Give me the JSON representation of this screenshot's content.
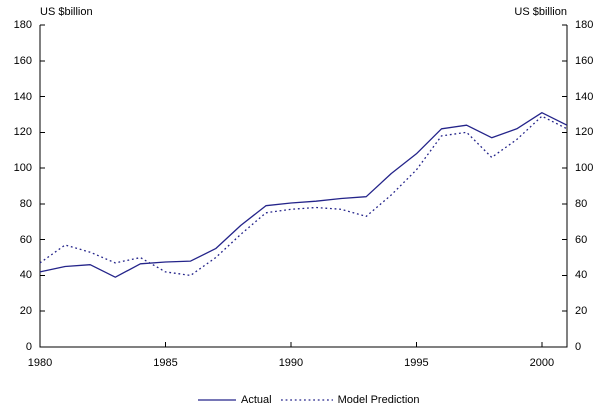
{
  "chart_data": {
    "type": "line",
    "title": "",
    "ylabel_left": "US $billion",
    "ylabel_right": "US $billion",
    "xlim": [
      1980,
      2001
    ],
    "ylim": [
      0,
      180
    ],
    "yticks": [
      0,
      20,
      40,
      60,
      80,
      100,
      120,
      140,
      160,
      180
    ],
    "xticks": [
      1980,
      1985,
      1990,
      1995,
      2000
    ],
    "grid": false,
    "legend_position": "bottom-center",
    "line_color": "#24248a",
    "axis_color": "#000000",
    "x": [
      1980,
      1981,
      1982,
      1983,
      1984,
      1985,
      1986,
      1987,
      1988,
      1989,
      1990,
      1991,
      1992,
      1993,
      1994,
      1995,
      1996,
      1997,
      1998,
      1999,
      2000,
      2001
    ],
    "series": [
      {
        "name": "Actual",
        "style": "solid",
        "values": [
          42,
          45,
          46,
          39,
          46.5,
          47.5,
          48,
          55,
          68,
          79,
          80.5,
          81.5,
          83,
          84,
          97,
          108,
          122,
          124,
          117,
          122,
          131,
          124
        ]
      },
      {
        "name": "Model Prediction",
        "style": "dotted",
        "values": [
          47,
          57,
          53,
          47,
          50,
          42,
          40,
          50,
          63,
          75,
          77,
          78,
          77,
          73,
          85,
          99,
          118,
          120,
          106,
          116,
          129,
          122
        ]
      }
    ]
  }
}
